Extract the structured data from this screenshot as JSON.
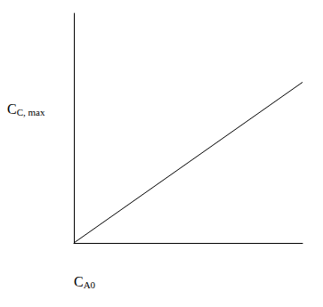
{
  "chart_data": {
    "type": "line",
    "xlabel": "CA0",
    "ylabel": "CC, max",
    "x": [
      0,
      1
    ],
    "values": [
      0,
      0.7
    ],
    "color": "#000000",
    "xlim": [
      0,
      1
    ],
    "ylim": [
      0,
      1
    ],
    "grid": false,
    "tick_labels": false
  }
}
